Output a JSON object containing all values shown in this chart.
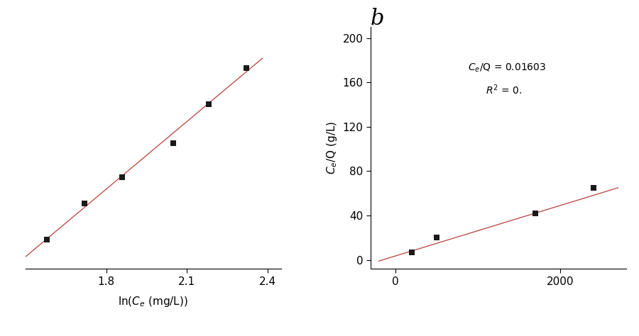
{
  "panel_a": {
    "scatter_x": [
      1.58,
      1.72,
      1.86,
      2.05,
      2.18,
      2.32
    ],
    "scatter_y": [
      107,
      122,
      133,
      147,
      163,
      178
    ],
    "fit_x": [
      1.5,
      2.38
    ],
    "fit_y": [
      100,
      182
    ],
    "xlabel": "ln(C_e (mg/L))",
    "ylabel": "",
    "xticks": [
      1.8,
      2.1,
      2.4
    ],
    "line_color": "#c0504d",
    "marker_color": "#1a1a1a",
    "xlim": [
      1.5,
      2.45
    ],
    "ylim": [
      95,
      195
    ]
  },
  "panel_b": {
    "scatter_x": [
      200,
      500,
      1700,
      2400
    ],
    "scatter_y": [
      7,
      20,
      42,
      65
    ],
    "fit_x": [
      -200,
      2700
    ],
    "fit_y": [
      -1,
      65
    ],
    "xlabel": "",
    "ylabel": "C_e/Q (g/L)",
    "annotation_line1": "C_e/Q = 0.01603",
    "annotation_line2": "R² = 0.",
    "xticks": [
      0,
      2000
    ],
    "yticks": [
      0,
      40,
      80,
      120,
      160,
      200
    ],
    "line_color": "#c0504d",
    "marker_color": "#1a1a1a",
    "xlim": [
      -300,
      2800
    ],
    "ylim": [
      -8,
      210
    ],
    "label_b": "b"
  },
  "xlabel_full": "ln(C_e (mg/L))",
  "xlabel_partial": "mg/L))",
  "background_color": "#ffffff"
}
